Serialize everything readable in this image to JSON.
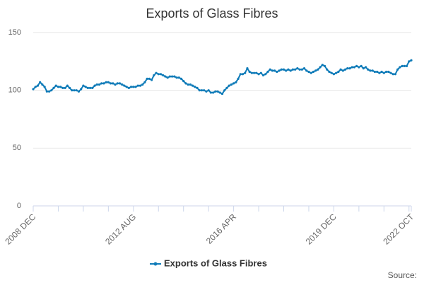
{
  "chart_data": {
    "type": "line",
    "title": "Exports of Glass Fibres",
    "categories": [
      "2008 DEC",
      null,
      null,
      null,
      null,
      null,
      null,
      null,
      null,
      null,
      null,
      null,
      null,
      null,
      null,
      null,
      null,
      null,
      null,
      null,
      null,
      null,
      null,
      null,
      null,
      null,
      null,
      null,
      null,
      null,
      null,
      null,
      null,
      null,
      null,
      null,
      null,
      null,
      null,
      null,
      null,
      null,
      null,
      null,
      "2012 AUG",
      null,
      null,
      null,
      null,
      null,
      null,
      null,
      null,
      null,
      null,
      null,
      null,
      null,
      null,
      null,
      null,
      null,
      null,
      null,
      null,
      null,
      null,
      null,
      null,
      null,
      null,
      null,
      null,
      null,
      null,
      null,
      null,
      null,
      null,
      null,
      null,
      null,
      null,
      null,
      null,
      null,
      null,
      null,
      "2016 APR",
      null,
      null,
      null,
      null,
      null,
      null,
      null,
      null,
      null,
      null,
      null,
      null,
      null,
      null,
      null,
      null,
      null,
      null,
      null,
      null,
      null,
      null,
      null,
      null,
      null,
      null,
      null,
      null,
      null,
      null,
      null,
      null,
      null,
      null,
      null,
      null,
      null,
      null,
      null,
      null,
      null,
      null,
      null,
      "2019 DEC",
      null,
      null,
      null,
      null,
      null,
      null,
      null,
      null,
      null,
      null,
      null,
      null,
      null,
      null,
      null,
      null,
      null,
      null,
      null,
      null,
      null,
      null,
      null,
      null,
      null,
      null,
      null,
      null,
      null,
      null,
      null,
      null,
      null,
      "2022 OCT"
    ],
    "series": [
      {
        "name": "Exports of Glass Fibres",
        "color": "#0f7bb8",
        "values": [
          101,
          103,
          104,
          107,
          105,
          103,
          99,
          99,
          100,
          102,
          104,
          103,
          103,
          102,
          102,
          104,
          102,
          100,
          100,
          100,
          99,
          101,
          104,
          103,
          102,
          102,
          102,
          104,
          105,
          105,
          106,
          106,
          107,
          107,
          106,
          106,
          105,
          106,
          106,
          105,
          104,
          103,
          102,
          103,
          103,
          103,
          104,
          104,
          105,
          107,
          110,
          110,
          109,
          113,
          115,
          114,
          114,
          113,
          112,
          111,
          112,
          112,
          112,
          111,
          111,
          110,
          108,
          106,
          105,
          105,
          104,
          103,
          102,
          100,
          100,
          100,
          99,
          100,
          98,
          98,
          99,
          99,
          98,
          97,
          100,
          102,
          104,
          105,
          106,
          107,
          110,
          114,
          114,
          115,
          119,
          116,
          115,
          115,
          115,
          114,
          115,
          113,
          114,
          116,
          118,
          117,
          117,
          116,
          117,
          118,
          118,
          117,
          118,
          117,
          118,
          118,
          119,
          118,
          118,
          119,
          117,
          116,
          115,
          116,
          117,
          118,
          120,
          122,
          121,
          118,
          116,
          115,
          114,
          115,
          116,
          118,
          117,
          118,
          119,
          119,
          120,
          120,
          121,
          120,
          121,
          119,
          120,
          118,
          117,
          117,
          116,
          116,
          115,
          116,
          115,
          116,
          116,
          115,
          114,
          114,
          118,
          120,
          121,
          121,
          121,
          125,
          126
        ]
      }
    ],
    "ylim": [
      0,
      150
    ],
    "yticks": [
      0,
      50,
      100,
      150
    ],
    "grid": true,
    "legend": "bottom",
    "source": "Source:"
  }
}
